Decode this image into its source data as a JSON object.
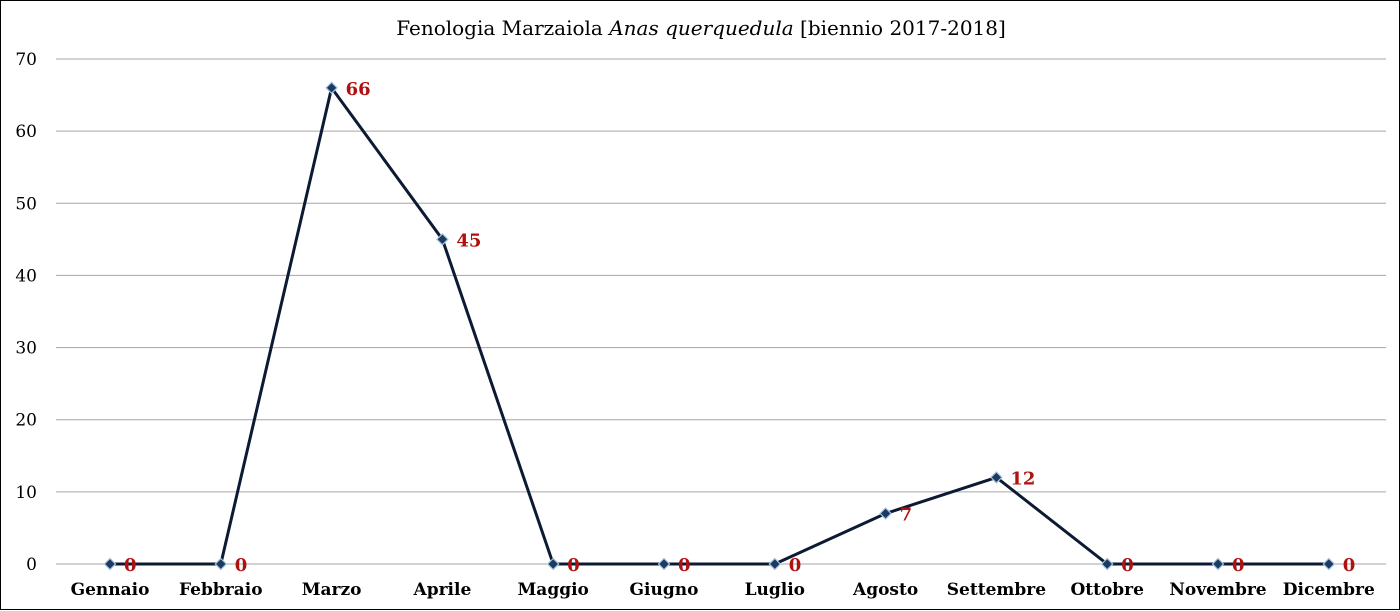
{
  "chart_data": {
    "type": "line",
    "title_parts": [
      {
        "text": "Fenologia Marzaiola ",
        "italic": false
      },
      {
        "text": "Anas querquedula",
        "italic": true
      },
      {
        "text": " [biennio 2017-2018]",
        "italic": false
      }
    ],
    "categories": [
      "Gennaio",
      "Febbraio",
      "Marzo",
      "Aprile",
      "Maggio",
      "Giugno",
      "Luglio",
      "Agosto",
      "Settembre",
      "Ottobre",
      "Novembre",
      "Dicembre"
    ],
    "series": [
      {
        "values": [
          0,
          0,
          66,
          45,
          0,
          0,
          0,
          7,
          12,
          0,
          0,
          0
        ]
      }
    ],
    "ylim": [
      0,
      70
    ],
    "yticks": [
      0,
      10,
      20,
      30,
      40,
      50,
      60,
      70
    ],
    "grid": true,
    "legend": "none",
    "data_labels": true,
    "colors": {
      "line": "#0d1a33",
      "marker_fill": "#1f3a5f",
      "marker_stroke": "#9ec5e8",
      "data_label": "#b01010",
      "grid": "#a6a6a6"
    }
  }
}
